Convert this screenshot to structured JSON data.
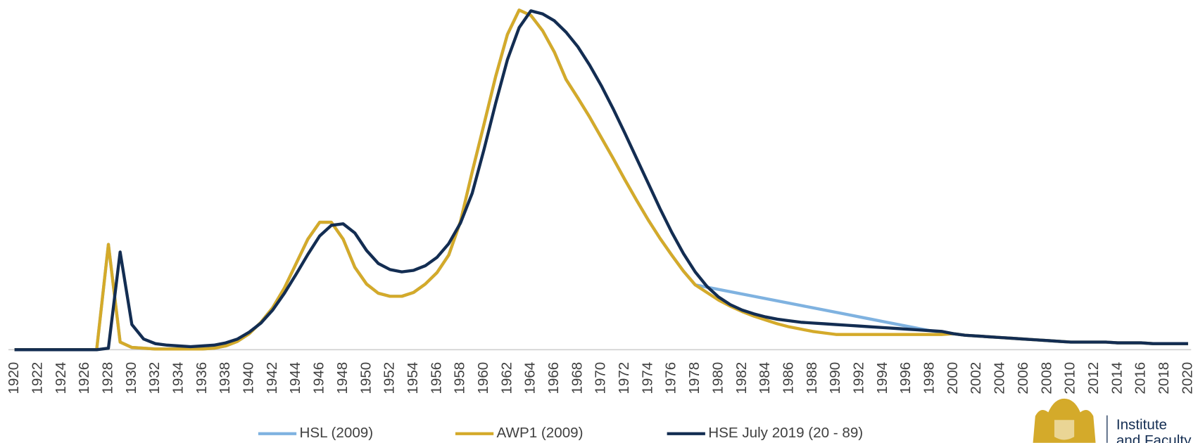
{
  "chart_data": {
    "type": "line",
    "x": [
      1920,
      1921,
      1922,
      1923,
      1924,
      1925,
      1926,
      1927,
      1928,
      1929,
      1930,
      1931,
      1932,
      1933,
      1934,
      1935,
      1936,
      1937,
      1938,
      1939,
      1940,
      1941,
      1942,
      1943,
      1944,
      1945,
      1946,
      1947,
      1948,
      1949,
      1950,
      1951,
      1952,
      1953,
      1954,
      1955,
      1956,
      1957,
      1958,
      1959,
      1960,
      1961,
      1962,
      1963,
      1964,
      1965,
      1966,
      1967,
      1968,
      1969,
      1970,
      1971,
      1972,
      1973,
      1974,
      1975,
      1976,
      1977,
      1978,
      1979,
      1980,
      1981,
      1982,
      1983,
      1984,
      1985,
      1986,
      1987,
      1988,
      1989,
      1990,
      1991,
      1992,
      1993,
      1994,
      1995,
      1996,
      1997,
      1998,
      1999,
      2000,
      2001,
      2002,
      2003,
      2004,
      2005,
      2006,
      2007,
      2008,
      2009,
      2010,
      2011,
      2012,
      2013,
      2014,
      2015,
      2016,
      2017,
      2018,
      2019,
      2020
    ],
    "xlim": [
      1920,
      2020
    ],
    "xticks": [
      1920,
      1922,
      1924,
      1926,
      1928,
      1930,
      1932,
      1934,
      1936,
      1938,
      1940,
      1942,
      1944,
      1946,
      1948,
      1950,
      1952,
      1954,
      1956,
      1958,
      1960,
      1962,
      1964,
      1966,
      1968,
      1970,
      1972,
      1974,
      1976,
      1978,
      1980,
      1982,
      1984,
      1986,
      1988,
      1990,
      1992,
      1994,
      1996,
      1998,
      2000,
      2002,
      2004,
      2006,
      2008,
      2010,
      2012,
      2014,
      2016,
      2018,
      2020
    ],
    "ylim": [
      0,
      458
    ],
    "series": [
      {
        "name": "HSL (2009)",
        "color": "#7fb2e0",
        "values": [
          0,
          0,
          0,
          0,
          0,
          0,
          0,
          0,
          138,
          10,
          3,
          2,
          1,
          1,
          1,
          1,
          1,
          2,
          5,
          11,
          21,
          36,
          55,
          81,
          113,
          145,
          167,
          167,
          145,
          108,
          86,
          74,
          70,
          70,
          75,
          86,
          101,
          124,
          168,
          233,
          295,
          358,
          413,
          445,
          438,
          418,
          390,
          354,
          330,
          305,
          278,
          251,
          223,
          196,
          170,
          146,
          124,
          103,
          85,
          82,
          79,
          76,
          73,
          70,
          67,
          64,
          61,
          58,
          55,
          52,
          49,
          46,
          43,
          40,
          37,
          34,
          31,
          28,
          25,
          23,
          21,
          19,
          18,
          17,
          16,
          15,
          14,
          13,
          12,
          11,
          10,
          10,
          10,
          10,
          9,
          9,
          9,
          8,
          8,
          8,
          8
        ]
      },
      {
        "name": "AWP1 (2009)",
        "color": "#d4aa2a",
        "values": [
          0,
          0,
          0,
          0,
          0,
          0,
          0,
          0,
          138,
          10,
          3,
          2,
          1,
          1,
          1,
          1,
          1,
          2,
          5,
          11,
          21,
          36,
          55,
          81,
          113,
          145,
          167,
          167,
          145,
          108,
          86,
          74,
          70,
          70,
          75,
          86,
          101,
          124,
          168,
          233,
          295,
          358,
          413,
          445,
          438,
          418,
          390,
          354,
          330,
          305,
          278,
          251,
          223,
          196,
          170,
          146,
          124,
          103,
          85,
          75,
          65,
          57,
          50,
          44,
          39,
          34,
          30,
          27,
          24,
          22,
          20,
          20,
          20,
          20,
          20,
          20,
          20,
          20,
          20,
          20,
          21,
          19,
          18,
          17,
          16,
          15,
          14,
          13,
          12,
          11,
          10,
          10,
          10,
          10,
          9,
          9,
          9,
          8,
          8,
          8,
          8
        ]
      },
      {
        "name": "HSE July 2019 (20 - 89)",
        "color": "#132d52",
        "values": [
          0,
          0,
          0,
          0,
          0,
          0,
          0,
          0,
          2,
          128,
          33,
          14,
          8,
          6,
          5,
          4,
          5,
          6,
          9,
          14,
          23,
          35,
          52,
          74,
          99,
          125,
          149,
          163,
          165,
          153,
          130,
          113,
          105,
          102,
          104,
          110,
          121,
          139,
          166,
          205,
          262,
          323,
          380,
          422,
          444,
          440,
          431,
          416,
          397,
          373,
          346,
          316,
          284,
          251,
          218,
          185,
          154,
          126,
          102,
          83,
          69,
          59,
          52,
          47,
          43,
          40,
          38,
          36,
          35,
          34,
          33,
          32,
          31,
          30,
          29,
          28,
          27,
          26,
          25,
          24,
          21,
          19,
          18,
          17,
          16,
          15,
          14,
          13,
          12,
          11,
          10,
          10,
          10,
          10,
          9,
          9,
          9,
          8,
          8,
          8,
          8
        ]
      }
    ]
  },
  "logo": {
    "lines": [
      "Institute",
      "and Faculty"
    ]
  }
}
